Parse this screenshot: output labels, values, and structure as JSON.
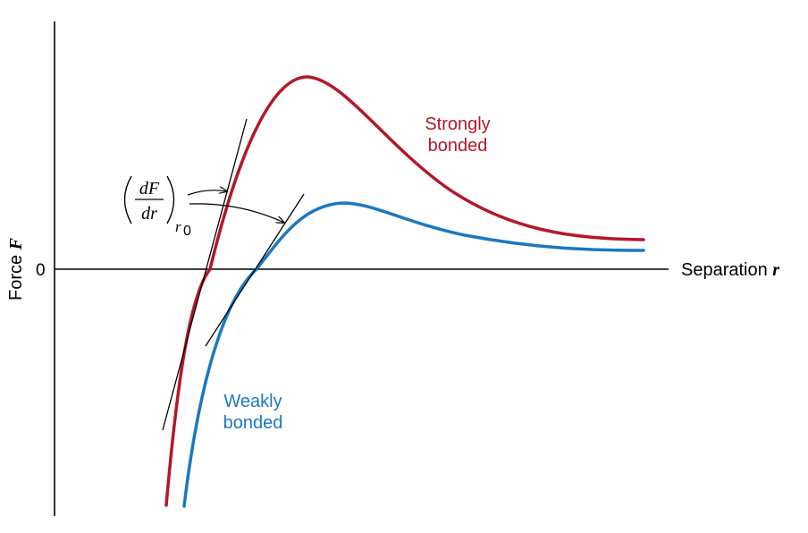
{
  "axes": {
    "x_label_prefix": "Separation ",
    "x_label_var": "r",
    "y_label_prefix": "Force ",
    "y_label_var": "F",
    "zero_tick": "0"
  },
  "curves": {
    "strong": {
      "label_line1": "Strongly",
      "label_line2": "bonded",
      "color": "#b3172b"
    },
    "weak": {
      "label_line1": "Weakly",
      "label_line2": "bonded",
      "color": "#1a78c2"
    }
  },
  "annotation": {
    "numerator": "dF",
    "denominator": "dr",
    "subscript_r": "r",
    "subscript_0": "0"
  }
}
